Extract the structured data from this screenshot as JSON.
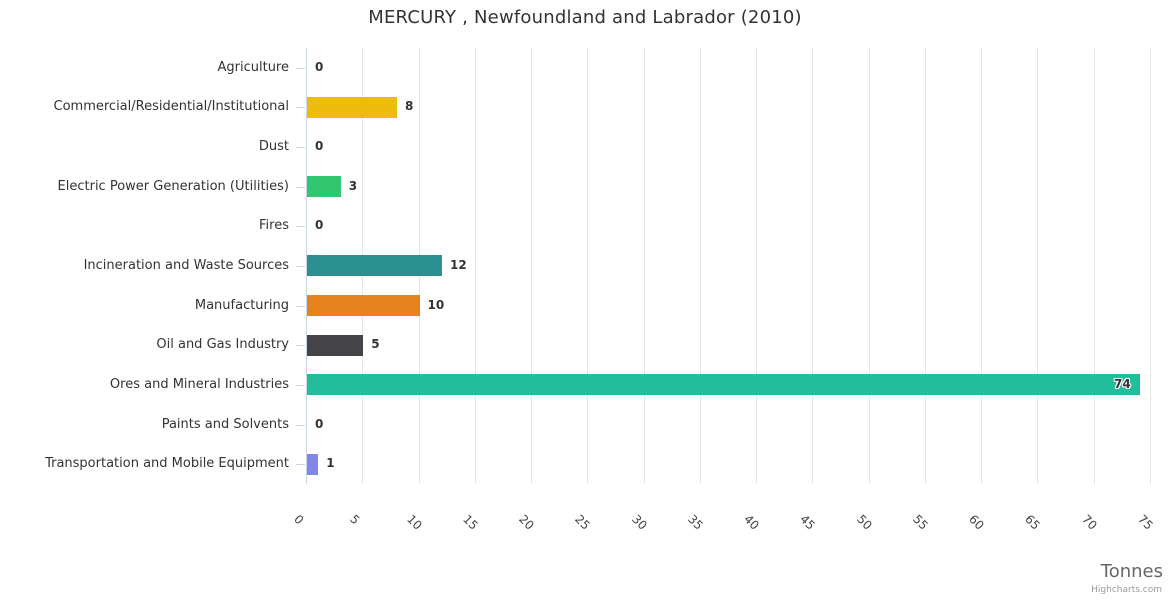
{
  "title": "MERCURY , Newfoundland and Labrador (2010)",
  "credit": "Highcharts.com",
  "chart_data": {
    "type": "bar",
    "orientation": "horizontal",
    "title": "MERCURY , Newfoundland and Labrador (2010)",
    "xlabel": "Tonnes",
    "categories": [
      "Agriculture",
      "Commercial/Residential/Institutional",
      "Dust",
      "Electric Power Generation (Utilities)",
      "Fires",
      "Incineration and Waste Sources",
      "Manufacturing",
      "Oil and Gas Industry",
      "Ores and Mineral Industries",
      "Paints and Solvents",
      "Transportation and Mobile Equipment"
    ],
    "values": [
      0,
      8,
      0,
      3,
      0,
      12,
      10,
      5,
      74,
      0,
      1
    ],
    "bar_colors": [
      null,
      "#EEBC0D",
      null,
      "#2FC66F",
      null,
      "#2B908F",
      "#E8821E",
      "#434348",
      "#22BD9A",
      null,
      "#8087E8"
    ],
    "xlim": [
      0,
      75
    ],
    "x_ticks": [
      0,
      5,
      10,
      15,
      20,
      25,
      30,
      35,
      40,
      45,
      50,
      55,
      60,
      65,
      70,
      75
    ],
    "grid": true,
    "legend": false,
    "grid_color": "#e6e6e6",
    "axis_line_color": "#ccd6eb",
    "label_color": "#333333"
  }
}
